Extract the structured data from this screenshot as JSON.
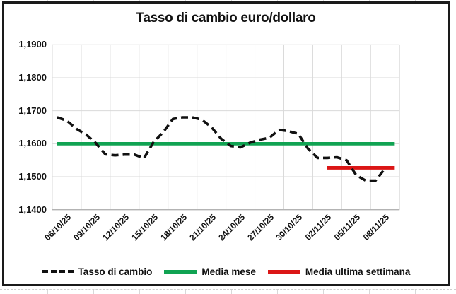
{
  "title": "Tasso di cambio euro/dollaro",
  "colors": {
    "series_line": "#111111",
    "month_avg": "#10A352",
    "week_avg": "#DB1616",
    "gridline": "#d9d9d9",
    "axis_line": "#b3b3b3"
  },
  "legend": [
    {
      "label": "Tasso di cambio",
      "style": "dashed",
      "color": "#111111"
    },
    {
      "label": "Media mese",
      "style": "solid",
      "color": "#10A352"
    },
    {
      "label": "Media ultima settimana",
      "style": "solid",
      "color": "#DB1616"
    }
  ],
  "y_axis": {
    "tick_labels": [
      "1,1900",
      "1,1800",
      "1,1700",
      "1,1600",
      "1,1500",
      "1,1400"
    ],
    "tick_values": [
      1.19,
      1.18,
      1.17,
      1.16,
      1.15,
      1.14
    ]
  },
  "x_axis": {
    "tick_labels": [
      "06/10/25",
      "09/10/25",
      "12/10/25",
      "15/10/25",
      "18/10/25",
      "21/10/25",
      "24/10/25",
      "27/10/25",
      "30/10/25",
      "02/11/25",
      "05/11/25",
      "08/11/25"
    ]
  },
  "chart_data": {
    "type": "line",
    "title": "Tasso di cambio euro/dollaro",
    "ylim": [
      1.14,
      1.19
    ],
    "grid": "both",
    "legend_position": "bottom",
    "x_total_slots": 36,
    "x": [
      "06/10/25",
      "07/10/25",
      "08/10/25",
      "09/10/25",
      "10/10/25",
      "11/10/25",
      "12/10/25",
      "13/10/25",
      "14/10/25",
      "15/10/25",
      "16/10/25",
      "17/10/25",
      "18/10/25",
      "19/10/25",
      "20/10/25",
      "21/10/25",
      "22/10/25",
      "23/10/25",
      "24/10/25",
      "25/10/25",
      "26/10/25",
      "27/10/25",
      "28/10/25",
      "29/10/25",
      "30/10/25",
      "31/10/25",
      "01/11/25",
      "02/11/25",
      "03/11/25",
      "04/11/25",
      "05/11/25",
      "06/11/25",
      "07/11/25",
      "08/11/25",
      "09/11/25"
    ],
    "series": [
      {
        "name": "Tasso di cambio",
        "style": "dashed",
        "color": "#111111",
        "start_slot": 0,
        "values": [
          1.168,
          1.167,
          1.1645,
          1.1628,
          1.1602,
          1.1568,
          1.1565,
          1.1567,
          1.1567,
          1.1556,
          1.1605,
          1.1635,
          1.1675,
          1.168,
          1.168,
          1.1673,
          1.165,
          1.1615,
          1.1593,
          1.1589,
          1.1603,
          1.1612,
          1.1618,
          1.1642,
          1.1638,
          1.163,
          1.1585,
          1.1557,
          1.1557,
          1.1559,
          1.155,
          1.1505,
          1.1488,
          1.1488,
          1.1525
        ]
      },
      {
        "name": "Media mese",
        "style": "solid",
        "color": "#10A352",
        "value": 1.16,
        "start_slot": 0,
        "end_slot": 35
      },
      {
        "name": "Media ultima settimana",
        "style": "solid",
        "color": "#DB1616",
        "value": 1.1527,
        "start_slot": 28,
        "end_slot": 35
      }
    ]
  }
}
